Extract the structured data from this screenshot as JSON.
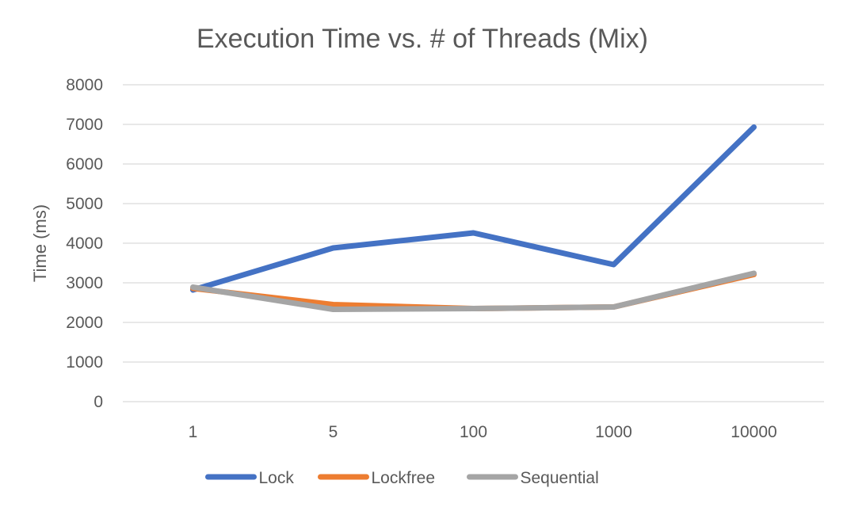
{
  "chart_data": {
    "type": "line",
    "title": "Execution Time vs. # of Threads (Mix)",
    "xlabel": "",
    "ylabel": "Time (ms)",
    "categories": [
      "1",
      "5",
      "100",
      "1000",
      "10000"
    ],
    "ylim": [
      0,
      8000
    ],
    "yticks": [
      0,
      1000,
      2000,
      3000,
      4000,
      5000,
      6000,
      7000,
      8000
    ],
    "grid": true,
    "legend_position": "bottom",
    "series": [
      {
        "name": "Lock",
        "color": "#4472c4",
        "values": [
          2820,
          3880,
          4260,
          3460,
          6930
        ]
      },
      {
        "name": "Lockfree",
        "color": "#ed7d31",
        "values": [
          2860,
          2450,
          2350,
          2390,
          3210
        ]
      },
      {
        "name": "Sequential",
        "color": "#a5a5a5",
        "values": [
          2890,
          2330,
          2350,
          2390,
          3240
        ]
      }
    ]
  }
}
